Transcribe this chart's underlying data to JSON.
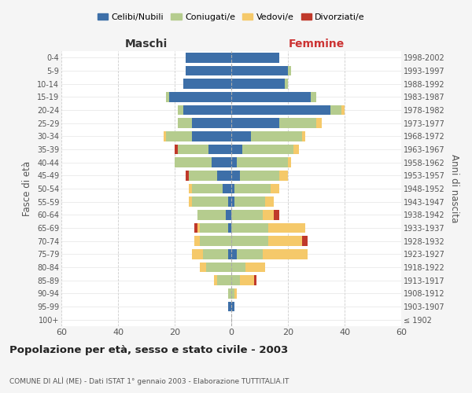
{
  "age_groups": [
    "100+",
    "95-99",
    "90-94",
    "85-89",
    "80-84",
    "75-79",
    "70-74",
    "65-69",
    "60-64",
    "55-59",
    "50-54",
    "45-49",
    "40-44",
    "35-39",
    "30-34",
    "25-29",
    "20-24",
    "15-19",
    "10-14",
    "5-9",
    "0-4"
  ],
  "birth_years": [
    "≤ 1902",
    "1903-1907",
    "1908-1912",
    "1913-1917",
    "1918-1922",
    "1923-1927",
    "1928-1932",
    "1933-1937",
    "1938-1942",
    "1943-1947",
    "1948-1952",
    "1953-1957",
    "1958-1962",
    "1963-1967",
    "1968-1972",
    "1973-1977",
    "1978-1982",
    "1983-1987",
    "1988-1992",
    "1993-1997",
    "1998-2002"
  ],
  "males": {
    "celibi": [
      0,
      1,
      0,
      0,
      0,
      1,
      0,
      1,
      2,
      1,
      3,
      5,
      7,
      8,
      14,
      14,
      17,
      22,
      17,
      16,
      16
    ],
    "coniugati": [
      0,
      0,
      1,
      5,
      9,
      9,
      11,
      10,
      10,
      13,
      11,
      10,
      13,
      11,
      9,
      5,
      2,
      1,
      0,
      0,
      0
    ],
    "vedovi": [
      0,
      0,
      0,
      1,
      2,
      4,
      2,
      1,
      0,
      1,
      1,
      0,
      0,
      0,
      1,
      0,
      0,
      0,
      0,
      0,
      0
    ],
    "divorziati": [
      0,
      0,
      0,
      0,
      0,
      0,
      0,
      1,
      0,
      0,
      0,
      1,
      0,
      1,
      0,
      0,
      0,
      0,
      0,
      0,
      0
    ]
  },
  "females": {
    "nubili": [
      0,
      1,
      0,
      0,
      0,
      2,
      0,
      0,
      0,
      1,
      1,
      3,
      2,
      4,
      7,
      17,
      35,
      28,
      19,
      20,
      17
    ],
    "coniugate": [
      0,
      0,
      1,
      3,
      5,
      9,
      13,
      13,
      11,
      11,
      13,
      14,
      18,
      18,
      18,
      13,
      4,
      2,
      1,
      1,
      0
    ],
    "vedove": [
      0,
      0,
      1,
      5,
      7,
      16,
      12,
      13,
      4,
      3,
      3,
      3,
      1,
      2,
      1,
      2,
      1,
      0,
      0,
      0,
      0
    ],
    "divorziate": [
      0,
      0,
      0,
      1,
      0,
      0,
      2,
      0,
      2,
      0,
      0,
      0,
      0,
      0,
      0,
      0,
      0,
      0,
      0,
      0,
      0
    ]
  },
  "color_celibi": "#3d6fa8",
  "color_coniugati": "#b5cc8e",
  "color_vedovi": "#f5c96a",
  "color_divorziati": "#c0392b",
  "xlim": 60,
  "title": "Popolazione per età, sesso e stato civile - 2003",
  "subtitle": "COMUNE DI ALÌ (ME) - Dati ISTAT 1° gennaio 2003 - Elaborazione TUTTITALIA.IT",
  "ylabel_left": "Fasce di età",
  "ylabel_right": "Anni di nascita",
  "xlabel_left": "Maschi",
  "xlabel_right": "Femmine",
  "bg_color": "#f5f5f5",
  "plot_bg": "#ffffff"
}
